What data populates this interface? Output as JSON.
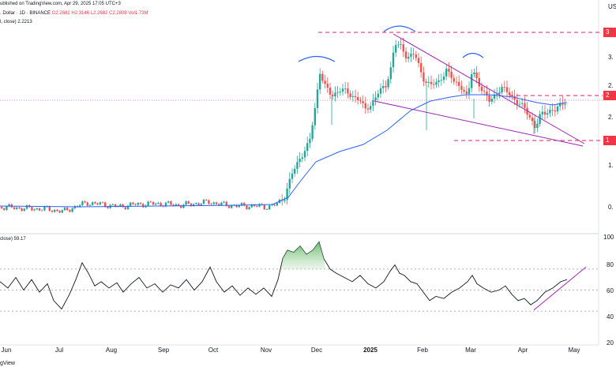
{
  "header": {
    "published": "ublished on TradingView.com, Apr 29, 2025 17:05 UTC+3",
    "symbol": ". Dollar · 1D · BINANCE",
    "ohlc": "O2.2682 H2.3146 L2.2682 C2.2808 Vol1.73M",
    "ma": "l, close) 2.2213",
    "rsi": "close) 59.17",
    "axis_title": "US"
  },
  "footer": {
    "brand": "gView"
  },
  "colors": {
    "up": "#26a69a",
    "down": "#ef5350",
    "ma": "#2962ff",
    "pattern": "#9c27b0",
    "level": "#e91e63",
    "shoulders": "#2962ff",
    "rsi": "#131722",
    "overbought": "#8bc34a"
  },
  "chart_data": [
    {
      "type": "candlestick",
      "title": "",
      "x": [
        "Jun",
        "Jul",
        "Aug",
        "Sep",
        "Oct",
        "Nov",
        "Dec",
        "2025",
        "Feb",
        "Mar",
        "Apr",
        "May"
      ],
      "ylim": [
        0.4,
        3.2
      ],
      "yticks": [
        "3.",
        "2.",
        "2.",
        "1.",
        "0."
      ],
      "levels": [
        {
          "label": "3",
          "value": 3.0
        },
        {
          "label": "2",
          "value": 2.3
        },
        {
          "label": "1",
          "value": 1.6
        }
      ],
      "ma_value": 2.2213,
      "series_summary": [
        {
          "month": "Jun",
          "close": 0.55
        },
        {
          "month": "Jul",
          "close": 0.5
        },
        {
          "month": "Aug",
          "close": 0.6
        },
        {
          "month": "Sep",
          "close": 0.57
        },
        {
          "month": "Oct",
          "close": 0.6
        },
        {
          "month": "Nov",
          "close": 0.55
        },
        {
          "month": "Dec",
          "close": 2.35
        },
        {
          "month": "2025",
          "close": 2.5
        },
        {
          "month": "Feb",
          "close": 2.6
        },
        {
          "month": "Mar",
          "close": 2.4
        },
        {
          "month": "Apr",
          "close": 2.1
        },
        {
          "month": "May",
          "close": 2.28
        }
      ]
    },
    {
      "type": "line",
      "title": "",
      "ylim": [
        20,
        100
      ],
      "yticks": [
        "100",
        "80",
        "60",
        "40",
        "20"
      ],
      "values_label": "59.17"
    }
  ]
}
